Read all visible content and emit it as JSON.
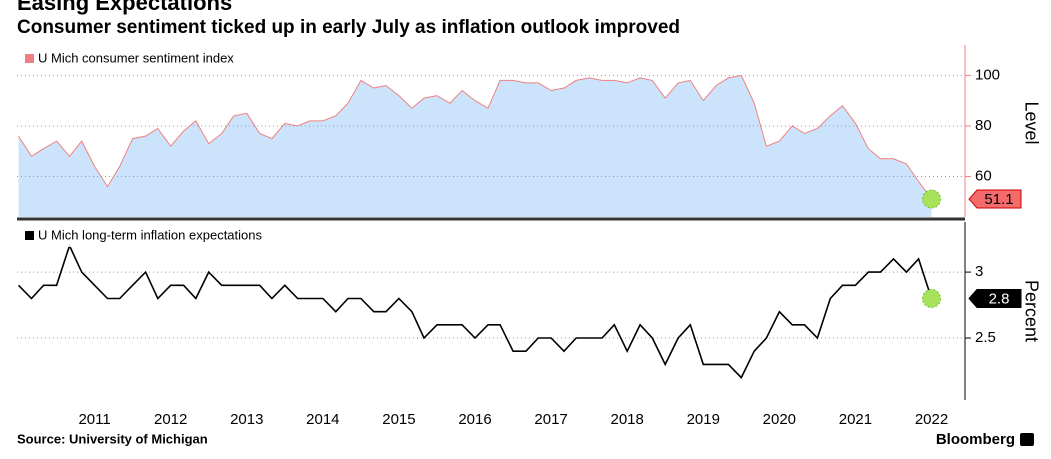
{
  "chart_data": [
    {
      "type": "area",
      "title": "Easing Expectations",
      "subtitle": "Consumer sentiment ticked up in early July as inflation outlook improved",
      "y_label": "Level",
      "grid": true,
      "x": [
        2010.5,
        2010.67,
        2010.83,
        2011,
        2011.17,
        2011.33,
        2011.5,
        2011.67,
        2011.83,
        2012,
        2012.17,
        2012.33,
        2012.5,
        2012.67,
        2012.83,
        2013,
        2013.17,
        2013.33,
        2013.5,
        2013.67,
        2013.83,
        2014,
        2014.17,
        2014.33,
        2014.5,
        2014.67,
        2014.83,
        2015,
        2015.17,
        2015.33,
        2015.5,
        2015.67,
        2015.83,
        2016,
        2016.17,
        2016.33,
        2016.5,
        2016.67,
        2016.83,
        2017,
        2017.17,
        2017.33,
        2017.5,
        2017.67,
        2017.83,
        2018,
        2018.17,
        2018.33,
        2018.5,
        2018.67,
        2018.83,
        2019,
        2019.17,
        2019.33,
        2019.5,
        2019.67,
        2019.83,
        2020,
        2020.17,
        2020.33,
        2020.5,
        2020.67,
        2020.83,
        2021,
        2021.17,
        2021.33,
        2021.5,
        2021.67,
        2021.83,
        2022,
        2022.17,
        2022.33,
        2022.5
      ],
      "series": [
        {
          "name": "U Mich consumer sentiment index",
          "color": "#f08080",
          "fill": "#cce4fb",
          "values": [
            76,
            68,
            71,
            74,
            68,
            74,
            64,
            56,
            64,
            75,
            76,
            79,
            72,
            78,
            82,
            73,
            77,
            84,
            85,
            77,
            75,
            81,
            80,
            82,
            82,
            84,
            89,
            98,
            95,
            96,
            92,
            87,
            91,
            92,
            89,
            94,
            90,
            87,
            98,
            98,
            97,
            97,
            94,
            95,
            98,
            99,
            98,
            98,
            97,
            99,
            98,
            91,
            97,
            98,
            90,
            96,
            99,
            100,
            89,
            72,
            74,
            80,
            77,
            79,
            84,
            88,
            81,
            71,
            67,
            67,
            65,
            58,
            51.1
          ]
        }
      ],
      "xlim": [
        2010.48,
        2022.94
      ],
      "ylim": [
        44,
        112
      ],
      "yticks": [
        60,
        80,
        100
      ]
    },
    {
      "type": "line",
      "y_label": "Percent",
      "grid": true,
      "x": [
        2010.5,
        2010.67,
        2010.83,
        2011,
        2011.17,
        2011.33,
        2011.5,
        2011.67,
        2011.83,
        2012,
        2012.17,
        2012.33,
        2012.5,
        2012.67,
        2012.83,
        2013,
        2013.17,
        2013.33,
        2013.5,
        2013.67,
        2013.83,
        2014,
        2014.17,
        2014.33,
        2014.5,
        2014.67,
        2014.83,
        2015,
        2015.17,
        2015.33,
        2015.5,
        2015.67,
        2015.83,
        2016,
        2016.17,
        2016.33,
        2016.5,
        2016.67,
        2016.83,
        2017,
        2017.17,
        2017.33,
        2017.5,
        2017.67,
        2017.83,
        2018,
        2018.17,
        2018.33,
        2018.5,
        2018.67,
        2018.83,
        2019,
        2019.17,
        2019.33,
        2019.5,
        2019.67,
        2019.83,
        2020,
        2020.17,
        2020.33,
        2020.5,
        2020.67,
        2020.83,
        2021,
        2021.17,
        2021.33,
        2021.5,
        2021.67,
        2021.83,
        2022,
        2022.17,
        2022.33,
        2022.5
      ],
      "series": [
        {
          "name": "U Mich long-term inflation expectations",
          "color": "#000000",
          "values": [
            2.9,
            2.8,
            2.9,
            2.9,
            3.2,
            3.0,
            2.9,
            2.8,
            2.8,
            2.9,
            3.0,
            2.8,
            2.9,
            2.9,
            2.8,
            3.0,
            2.9,
            2.9,
            2.9,
            2.9,
            2.8,
            2.9,
            2.8,
            2.8,
            2.8,
            2.7,
            2.8,
            2.8,
            2.7,
            2.7,
            2.8,
            2.7,
            2.5,
            2.6,
            2.6,
            2.6,
            2.5,
            2.6,
            2.6,
            2.4,
            2.4,
            2.5,
            2.5,
            2.4,
            2.5,
            2.5,
            2.5,
            2.6,
            2.4,
            2.6,
            2.5,
            2.3,
            2.5,
            2.6,
            2.3,
            2.3,
            2.3,
            2.2,
            2.4,
            2.5,
            2.7,
            2.6,
            2.6,
            2.5,
            2.8,
            2.9,
            2.9,
            3.0,
            3.0,
            3.1,
            3.0,
            3.1,
            2.8
          ]
        }
      ],
      "xlim": [
        2010.48,
        2022.94
      ],
      "xticks": [
        {
          "value": 2011.5,
          "label": "2011"
        },
        {
          "value": 2012.5,
          "label": "2012"
        },
        {
          "value": 2013.5,
          "label": "2013"
        },
        {
          "value": 2014.5,
          "label": "2014"
        },
        {
          "value": 2015.5,
          "label": "2015"
        },
        {
          "value": 2016.5,
          "label": "2016"
        },
        {
          "value": 2017.5,
          "label": "2017"
        },
        {
          "value": 2018.5,
          "label": "2018"
        },
        {
          "value": 2019.5,
          "label": "2019"
        },
        {
          "value": 2020.5,
          "label": "2020"
        },
        {
          "value": 2021.5,
          "label": "2021"
        },
        {
          "value": 2022.5,
          "label": "2022"
        }
      ],
      "ylim": [
        2.03,
        3.38
      ],
      "yticks": [
        2.5,
        3.0
      ]
    }
  ],
  "source": "Source: University of Michigan",
  "brand": "Bloomberg"
}
